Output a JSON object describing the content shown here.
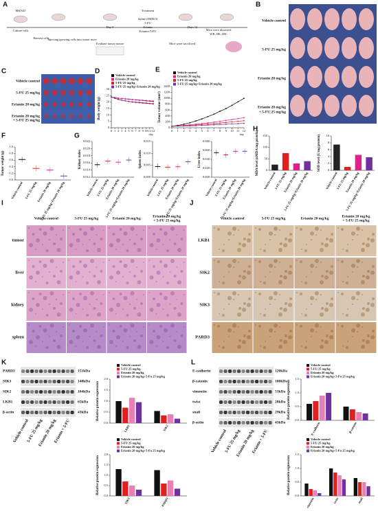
{
  "panels": {
    "A": {
      "label": "A",
      "texts": [
        "MKN45",
        "Culture cells",
        "Harvest cells",
        "Injecting growing cells into tumor mice",
        "Day 0",
        "Evaluate tumor mouse",
        "Treatment",
        "Saline (DMSO)",
        "5-FU",
        "Erianin",
        "Erianin+5-FU",
        "Days 12",
        "Mice were sacrificed",
        "Mice were dissected",
        "WB, HE, IHC"
      ]
    },
    "B": {
      "label": "B",
      "rows": [
        [
          "Vehicle control"
        ],
        [
          "5-FU 25 mg/kg"
        ],
        [
          "Erianin 20 mg/kg"
        ],
        [
          "Erianin 20 mg/kg",
          "+ 5-FU 25 mg/kg"
        ]
      ]
    },
    "C": {
      "label": "C",
      "rows": [
        [
          "Vehicle control"
        ],
        [
          "5-FU 25 mg/kg"
        ],
        [
          "Erianin 20 mg/kg"
        ],
        [
          "Erianin 20 mg/kg",
          "+ 5-FU 25 mg/kg"
        ]
      ]
    },
    "D": {
      "label": "D",
      "chart": {
        "type": "line",
        "ylabel": "Body weight (g)",
        "xlabel": "day",
        "x": [
          0,
          1,
          2,
          3,
          4,
          5,
          6,
          7,
          8,
          9,
          10,
          11,
          12
        ],
        "xlim": [
          0,
          12
        ],
        "xticks": [
          0,
          1,
          2,
          3,
          4,
          5,
          6,
          7,
          8,
          9,
          10,
          11,
          12
        ],
        "ylim": [
          0,
          30
        ],
        "yticks": [
          0,
          5,
          10,
          15,
          20,
          25,
          30
        ],
        "series": [
          {
            "name": "Vehicle control",
            "color": "#000000",
            "values": [
              24,
              23.5,
              23,
              22.8,
              22.5,
              22.3,
              22,
              21.8,
              21.5,
              21.3,
              21,
              20.8,
              20.5
            ]
          },
          {
            "name": "Erianin 20 mg/kg",
            "color": "#e0208c",
            "values": [
              24,
              23.5,
              23,
              22.8,
              22.5,
              22.3,
              22,
              21.8,
              21.6,
              21.4,
              21.2,
              21,
              20.8
            ]
          },
          {
            "name": "5-FU 25 mg/kg",
            "color": "#e02020",
            "values": [
              24,
              23,
              22,
              21.5,
              21,
              20.5,
              20,
              19.8,
              19.5,
              19.2,
              19,
              18.8,
              18.5
            ]
          },
          {
            "name": "5-FU 25 mg/kg+Erianin 20 mg/kg",
            "color": "#7030a0",
            "values": [
              24,
              23,
              22.2,
              21.5,
              21,
              20.6,
              20.2,
              20,
              19.8,
              19.5,
              19.3,
              19,
              18.8
            ]
          }
        ]
      }
    },
    "E": {
      "label": "E",
      "chart": {
        "type": "line",
        "ylabel": "Tumor volume (mm³)",
        "xlabel": "day",
        "x": [
          0,
          1,
          2,
          3,
          4,
          5,
          6,
          7,
          8,
          9,
          10,
          11,
          12
        ],
        "xlim": [
          0,
          12
        ],
        "xticks": [
          0,
          1,
          2,
          3,
          4,
          5,
          6,
          7,
          8,
          9,
          10,
          11,
          12
        ],
        "ylim": [
          0,
          1400
        ],
        "yticks": [
          0,
          200,
          400,
          600,
          800,
          1000,
          1200,
          1400
        ],
        "series": [
          {
            "name": "Vehicle control",
            "color": "#000000",
            "values": [
              50,
              80,
              120,
              170,
              230,
              300,
              380,
              460,
              560,
              650,
              760,
              880,
              1000
            ]
          },
          {
            "name": "Erianin 20 mg/kg",
            "color": "#e0208c",
            "values": [
              50,
              65,
              80,
              100,
              120,
              140,
              165,
              190,
              220,
              250,
              280,
              310,
              340
            ]
          },
          {
            "name": "5-FU 25 mg/kg",
            "color": "#e02020",
            "values": [
              50,
              60,
              70,
              80,
              95,
              110,
              125,
              140,
              160,
              180,
              200,
              220,
              240
            ]
          },
          {
            "name": "5-FU 25 mg/kg+Erianin 20 mg/kg",
            "color": "#7030a0",
            "values": [
              50,
              55,
              60,
              65,
              70,
              80,
              90,
              100,
              110,
              120,
              130,
              140,
              150
            ]
          }
        ]
      }
    },
    "F": {
      "label": "F",
      "chart": {
        "type": "dot",
        "ylabel": "Tumor weight (g)",
        "categories": [
          "Vehicle control",
          "5-FU 25 mg/kg",
          "Erianin 20 mg/kg",
          "5-FU 25 mg/kg+Erianin 20 mg/kg"
        ],
        "values": [
          0.62,
          0.35,
          0.3,
          0.12
        ],
        "colors": [
          "#000000",
          "#e02020",
          "#e0208c",
          "#7030a0"
        ],
        "ylim": [
          0,
          1
        ],
        "yticks": [
          {
            "value": 0,
            "label": "0.0"
          },
          {
            "value": 0.2,
            "label": "0.2"
          },
          {
            "value": 0.4,
            "label": "0.4"
          },
          {
            "value": 0.6,
            "label": "0.6"
          },
          {
            "value": 0.8,
            "label": "0.8"
          },
          {
            "value": 1,
            "label": "1.0"
          }
        ]
      }
    },
    "G": {
      "label": "G",
      "charts": [
        {
          "type": "dot",
          "ylabel": "Kidney index",
          "categories": [
            "Vehicle control",
            "5-FU 25 mg/kg",
            "Erianin 20 mg/kg",
            "5-FU 25 mg/kg+Erianin 20 mg/kg"
          ],
          "values": [
            0.0155,
            0.0165,
            0.0162,
            0.0168
          ],
          "colors": [
            "#000000",
            "#e02020",
            "#e0208c",
            "#7030a0"
          ],
          "ylim": [
            0.012,
            0.022
          ],
          "yticks": [
            {
              "value": 0.012,
              "label": "0.012"
            },
            {
              "value": 0.014,
              "label": "0.014"
            },
            {
              "value": 0.016,
              "label": "0.016"
            },
            {
              "value": 0.018,
              "label": "0.018"
            },
            {
              "value": 0.02,
              "label": "0.020"
            },
            {
              "value": 0.022,
              "label": "0.022"
            }
          ]
        },
        {
          "type": "dot",
          "ylabel": "Spleen index",
          "categories": [
            "Vehicle control",
            "5-FU 25 mg/kg",
            "Erianin 20 mg/kg",
            "5-FU 25 mg/kg+Erianin 20 mg/kg"
          ],
          "values": [
            0.0045,
            0.0042,
            0.0044,
            0.0065
          ],
          "colors": [
            "#000000",
            "#e02020",
            "#e0208c",
            "#7030a0"
          ],
          "ylim": [
            0,
            0.015
          ],
          "yticks": [
            {
              "value": 0,
              "label": "0.000"
            },
            {
              "value": 0.005,
              "label": "0.005"
            },
            {
              "value": 0.01,
              "label": "0.010"
            },
            {
              "value": 0.015,
              "label": "0.015"
            }
          ]
        },
        {
          "type": "dot",
          "ylabel": "Liver index",
          "categories": [
            "Vehicle control",
            "5-FU 25 mg/kg",
            "Erianin 20 mg/kg",
            "5-FU 25 mg/kg+Erianin 20 mg/kg"
          ],
          "values": [
            0.055,
            0.05,
            0.058,
            0.058
          ],
          "colors": [
            "#000000",
            "#e02020",
            "#e0208c",
            "#7030a0"
          ],
          "ylim": [
            0,
            0.08
          ],
          "yticks": [
            {
              "value": 0,
              "label": "0.000"
            },
            {
              "value": 0.02,
              "label": "0.020"
            },
            {
              "value": 0.04,
              "label": "0.040"
            },
            {
              "value": 0.06,
              "label": "0.060"
            },
            {
              "value": 0.08,
              "label": "0.080"
            }
          ]
        }
      ]
    },
    "H": {
      "label": "H",
      "charts": [
        {
          "type": "bar",
          "ylabel": "MDA level (nMDA/mg protein)",
          "categories": [
            "Vehicle control",
            "5-FU 25 mg/kg",
            "Erianin 20 mg/kg",
            "5-FU 25 mg/kg+Erianin 20 mg/kg"
          ],
          "values": [
            25,
            75,
            30,
            40
          ],
          "colors": [
            "#222222",
            "#e02020",
            "#e0208c",
            "#7030a0"
          ],
          "ylim": [
            0,
            150
          ],
          "yticks": [
            0,
            50,
            100,
            150
          ]
        },
        {
          "type": "bar",
          "ylabel": "SOD level (U/mg protein)",
          "categories": [
            "Vehicle control",
            "5-FU 25 mg/kg",
            "Erianin 20 mg/kg",
            "5-FU 25 mg/kg+Erianin 20 mg/kg"
          ],
          "values": [
            7.5,
            1,
            4.5,
            3.8
          ],
          "colors": [
            "#222222",
            "#e02020",
            "#e0208c",
            "#7030a0"
          ],
          "ylim": [
            0,
            10
          ],
          "yticks": [
            0,
            2,
            4,
            6,
            8,
            10
          ]
        }
      ]
    },
    "I": {
      "label": "I",
      "cols": [
        [
          "Vehicle control"
        ],
        [
          "5-FU 25 mg/kg"
        ],
        [
          "Erianin 20 mg/kg"
        ],
        [
          "Erianin 20 mg/kg",
          "+ 5-FU 25 mg/kg"
        ]
      ],
      "rows": [
        "tumor",
        "liver",
        "kidney",
        "spleen"
      ]
    },
    "J": {
      "label": "J",
      "cols": [
        [
          "Vehicle control"
        ],
        [
          "5-FU 25 mg/kg"
        ],
        [
          "Erianin 20 mg/kg"
        ],
        [
          "Erianin 20 mg/kg",
          "+ 5-FU 25 mg/kg"
        ]
      ],
      "rows": [
        "LKB1",
        "SIK2",
        "SIK3",
        "PARD3"
      ]
    },
    "K": {
      "label": "K",
      "blot": {
        "rows": [
          {
            "name": "PARD3",
            "size": "151kDa"
          },
          {
            "name": "SIK3",
            "size": "140kDa"
          },
          {
            "name": "SIK2",
            "size": "104kDa"
          },
          {
            "name": "LKB1",
            "size": "65kDa"
          },
          {
            "name": "β-actin",
            "size": "43kDa"
          }
        ],
        "lanes": [
          "Vehicle control",
          "5-FU 25 mg/kg",
          "Erianin 20 mg/kg",
          "Erianin + 5-FU"
        ]
      },
      "charts": [
        {
          "type": "group",
          "ylabel": "Relative protein expression",
          "categories": [
            "LKB1",
            "SIK2"
          ],
          "ylim": [
            0,
            2
          ],
          "yticks": [
            {
              "value": 0,
              "label": "0.0"
            },
            {
              "value": 0.5,
              "label": "0.5"
            },
            {
              "value": 1,
              "label": "1.0"
            },
            {
              "value": 1.5,
              "label": "1.5"
            },
            {
              "value": 2,
              "label": "2.0"
            }
          ],
          "series": [
            {
              "name": "Vehicle control",
              "color": "#111111",
              "values": [
                1.0,
                0.55
              ]
            },
            {
              "name": "5-FU 25 mg/kg",
              "color": "#e02020",
              "values": [
                0.7,
                0.35
              ]
            },
            {
              "name": "Erianin 20 mg/kg",
              "color": "#e87fb5",
              "values": [
                1.15,
                0.4
              ]
            },
            {
              "name": "Erianin 20 mg/kg+5-Fu 25 mg/kg",
              "color": "#7030a0",
              "values": [
                0.95,
                0.2
              ]
            }
          ]
        },
        {
          "type": "group",
          "ylabel": "Relative protein expression",
          "categories": [
            "SIK3",
            "PARD3"
          ],
          "ylim": [
            0,
            2
          ],
          "yticks": [
            {
              "value": 0,
              "label": "0.0"
            },
            {
              "value": 0.5,
              "label": "0.5"
            },
            {
              "value": 1,
              "label": "1.0"
            },
            {
              "value": 1.5,
              "label": "1.5"
            },
            {
              "value": 2,
              "label": "2.0"
            }
          ],
          "series": [
            {
              "name": "Vehicle control",
              "color": "#111111",
              "values": [
                1.3,
                1.25
              ]
            },
            {
              "name": "5-FU 25 mg/kg",
              "color": "#e02020",
              "values": [
                0.7,
                0.6
              ]
            },
            {
              "name": "Erianin 20 mg/kg",
              "color": "#e87fb5",
              "values": [
                0.5,
                0.75
              ]
            },
            {
              "name": "Erianin 20 mg/kg+5-Fu 25 mg/kg",
              "color": "#7030a0",
              "values": [
                0.3,
                0.35
              ]
            }
          ]
        }
      ]
    },
    "L": {
      "label": "L",
      "blot": {
        "rows": [
          {
            "name": "E-cadherin",
            "size": "120kDa"
          },
          {
            "name": "β-catenin",
            "size": "100kDa"
          },
          {
            "name": "vimentin",
            "size": "53kDa"
          },
          {
            "name": "twist",
            "size": "28kDa"
          },
          {
            "name": "snail",
            "size": "29kDa"
          },
          {
            "name": "β-actin",
            "size": "43kDa"
          }
        ],
        "lanes": [
          "Vehicle control",
          "5-FU 25 mg/kg",
          "Erianin 20 mg/kg",
          "Erianin + 5-FU"
        ]
      },
      "charts": [
        {
          "type": "group",
          "ylabel": "Relative protein expression",
          "categories": [
            "E-cadherin",
            "β-catenin"
          ],
          "ylim": [
            0,
            1.5
          ],
          "yticks": [
            {
              "value": 0,
              "label": "0.0"
            },
            {
              "value": 0.5,
              "label": "0.5"
            },
            {
              "value": 1,
              "label": "1.0"
            },
            {
              "value": 1.5,
              "label": "1.5"
            }
          ],
          "series": [
            {
              "name": "Vehicle control",
              "color": "#111111",
              "values": [
                0.6,
                0.5
              ]
            },
            {
              "name": "5-FU 25 mg/kg",
              "color": "#e02020",
              "values": [
                0.7,
                0.4
              ]
            },
            {
              "name": "Erianin 20 mg/kg",
              "color": "#e87fb5",
              "values": [
                0.9,
                0.3
              ]
            },
            {
              "name": "Erianin 20 mg/kg+5-Fu 25 mg/kg",
              "color": "#7030a0",
              "values": [
                1.0,
                0.25
              ]
            }
          ]
        },
        {
          "type": "group",
          "ylabel": "Relative protein expression",
          "categories": [
            "vimentin",
            "twist",
            "snail"
          ],
          "ylim": [
            0,
            1.5
          ],
          "yticks": [
            {
              "value": 0,
              "label": "0.0"
            },
            {
              "value": 0.5,
              "label": "0.5"
            },
            {
              "value": 1,
              "label": "1.0"
            },
            {
              "value": 1.5,
              "label": "1.5"
            }
          ],
          "series": [
            {
              "name": "Vehicle control",
              "color": "#111111",
              "values": [
                0.45,
                1.0,
                0.65
              ]
            },
            {
              "name": "5-FU 25 mg/kg",
              "color": "#e02020",
              "values": [
                0.25,
                0.85,
                0.5
              ]
            },
            {
              "name": "Erianin 20 mg/kg",
              "color": "#e87fb5",
              "values": [
                0.2,
                0.75,
                0.5
              ]
            },
            {
              "name": "Erianin 20 mg/kg+5-Fu 25 mg/kg",
              "color": "#7030a0",
              "values": [
                0.1,
                0.6,
                0.35
              ]
            }
          ]
        }
      ]
    }
  }
}
